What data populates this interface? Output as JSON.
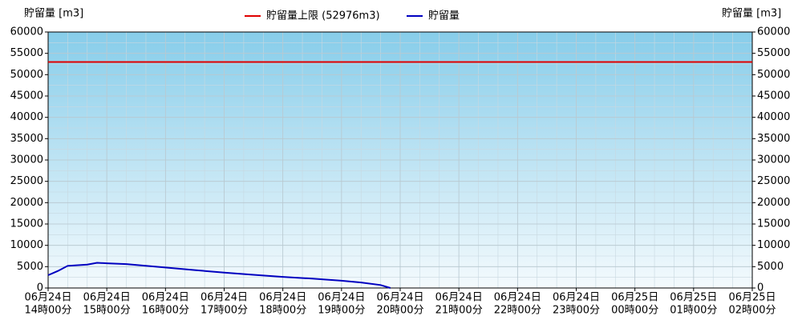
{
  "chart_data": {
    "type": "line",
    "y_label": "貯留量 [m3]",
    "y2_label": "貯留量 [m3]",
    "xlim": [
      "06-24T14:00",
      "06-25T02:00"
    ],
    "xticks": [
      {
        "value": "06-24T14:00",
        "label": [
          "06月24日",
          "14時00分"
        ]
      },
      {
        "value": "06-24T15:00",
        "label": [
          "06月24日",
          "15時00分"
        ]
      },
      {
        "value": "06-24T16:00",
        "label": [
          "06月24日",
          "16時00分"
        ]
      },
      {
        "value": "06-24T17:00",
        "label": [
          "06月24日",
          "17時00分"
        ]
      },
      {
        "value": "06-24T18:00",
        "label": [
          "06月24日",
          "18時00分"
        ]
      },
      {
        "value": "06-24T19:00",
        "label": [
          "06月24日",
          "19時00分"
        ]
      },
      {
        "value": "06-24T20:00",
        "label": [
          "06月24日",
          "20時00分"
        ]
      },
      {
        "value": "06-24T21:00",
        "label": [
          "06月24日",
          "21時00分"
        ]
      },
      {
        "value": "06-24T22:00",
        "label": [
          "06月24日",
          "22時00分"
        ]
      },
      {
        "value": "06-24T23:00",
        "label": [
          "06月24日",
          "23時00分"
        ]
      },
      {
        "value": "06-25T00:00",
        "label": [
          "06月25日",
          "00時00分"
        ]
      },
      {
        "value": "06-25T01:00",
        "label": [
          "06月25日",
          "01時00分"
        ]
      },
      {
        "value": "06-25T02:00",
        "label": [
          "06月25日",
          "02時00分"
        ]
      }
    ],
    "ylim": [
      0,
      60000
    ],
    "yticks": [
      0,
      5000,
      10000,
      15000,
      20000,
      25000,
      30000,
      35000,
      40000,
      45000,
      50000,
      55000,
      60000
    ],
    "y2lim": [
      0,
      60000
    ],
    "y2ticks": [
      0,
      5000,
      10000,
      15000,
      20000,
      25000,
      30000,
      35000,
      40000,
      45000,
      50000,
      55000,
      60000
    ],
    "grid": true,
    "limit": {
      "name": "貯留量上限 (52976m3)",
      "value": 52976,
      "color": "#e00000"
    },
    "x": [
      "06-24T14:00",
      "06-24T14:10",
      "06-24T14:20",
      "06-24T14:40",
      "06-24T14:50",
      "06-24T15:00",
      "06-24T15:20",
      "06-24T15:40",
      "06-24T16:00",
      "06-24T16:30",
      "06-24T17:00",
      "06-24T17:30",
      "06-24T18:00",
      "06-24T18:30",
      "06-24T19:00",
      "06-24T19:20",
      "06-24T19:40",
      "06-24T19:50"
    ],
    "series": [
      {
        "name": "貯留量",
        "color": "#0000c0",
        "values": [
          3000,
          4000,
          5200,
          5500,
          5900,
          5800,
          5600,
          5200,
          4800,
          4200,
          3600,
          3100,
          2600,
          2200,
          1700,
          1300,
          700,
          0
        ]
      }
    ]
  }
}
